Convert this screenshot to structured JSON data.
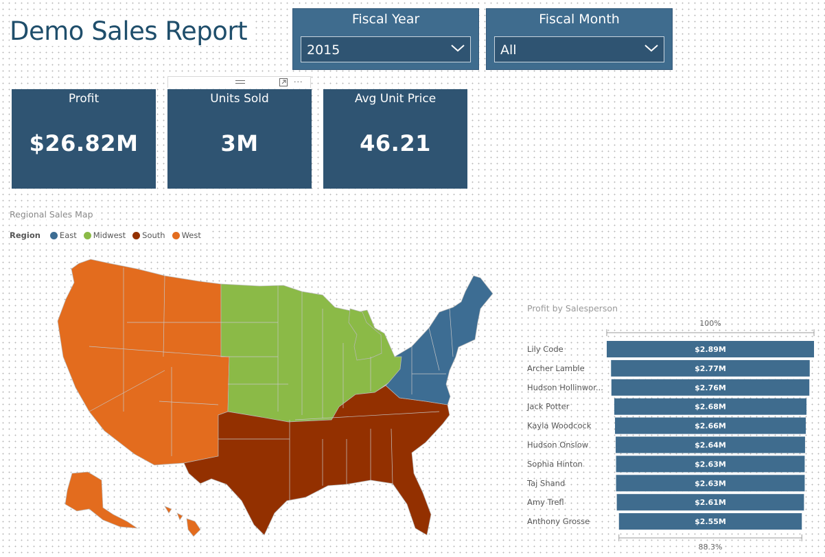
{
  "report": {
    "title": "Demo Sales Report"
  },
  "slicers": [
    {
      "title": "Fiscal Year",
      "value": "2015"
    },
    {
      "title": "Fiscal Month",
      "value": "All"
    }
  ],
  "cards": [
    {
      "label": "Profit",
      "value": "$26.82M"
    },
    {
      "label": "Units Sold",
      "value": "3M"
    },
    {
      "label": "Avg Unit Price",
      "value": "46.21"
    }
  ],
  "map": {
    "title": "Regional Sales Map",
    "legend_title": "Region",
    "regions": [
      {
        "name": "East",
        "color": "#3d6d93"
      },
      {
        "name": "Midwest",
        "color": "#8bba47"
      },
      {
        "name": "South",
        "color": "#933000"
      },
      {
        "name": "West",
        "color": "#e36c1e"
      }
    ]
  },
  "chart_data": {
    "type": "bar",
    "title": "Profit by Salesperson",
    "top_percent_label": "100%",
    "bottom_percent_label": "88.3%",
    "color": "#3f6c8e",
    "categories": [
      "Lily Code",
      "Archer Lamble",
      "Hudson Hollinwor...",
      "Jack Potter",
      "Kayla Woodcock",
      "Hudson Onslow",
      "Sophia Hinton",
      "Taj Shand",
      "Amy Trefl",
      "Anthony Grosse"
    ],
    "values": [
      2.89,
      2.77,
      2.76,
      2.68,
      2.66,
      2.64,
      2.63,
      2.63,
      2.61,
      2.55
    ],
    "value_labels": [
      "$2.89M",
      "$2.77M",
      "$2.76M",
      "$2.68M",
      "$2.66M",
      "$2.64M",
      "$2.63M",
      "$2.63M",
      "$2.61M",
      "$2.55M"
    ]
  }
}
